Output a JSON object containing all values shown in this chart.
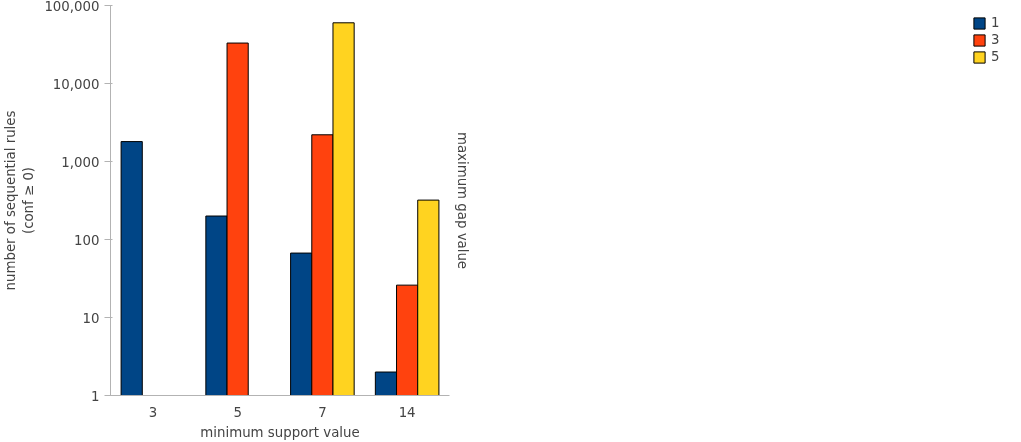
{
  "chart_data": {
    "type": "bar",
    "xlabel": "minimum support value",
    "ylabel": "number of sequential rules\n(conf ≥ 0)",
    "legend_title": "maximum gap value",
    "categories": [
      "3",
      "5",
      "7",
      "14"
    ],
    "series": [
      {
        "name": "1",
        "color": "#004586",
        "values": [
          1800,
          200,
          67,
          2
        ]
      },
      {
        "name": "3",
        "color": "#ff420e",
        "values": [
          null,
          33000,
          2200,
          26
        ]
      },
      {
        "name": "5",
        "color": "#ffd320",
        "values": [
          null,
          null,
          60000,
          320
        ]
      }
    ],
    "log": true,
    "ylim": [
      1,
      100000
    ],
    "yticks": [
      1,
      10,
      100,
      {
        "value": 1000,
        "label": "1,000"
      },
      {
        "value": 10000,
        "label": "10,000"
      },
      {
        "value": 100000,
        "label": "100,000"
      }
    ],
    "grid": false,
    "legend": "right"
  }
}
